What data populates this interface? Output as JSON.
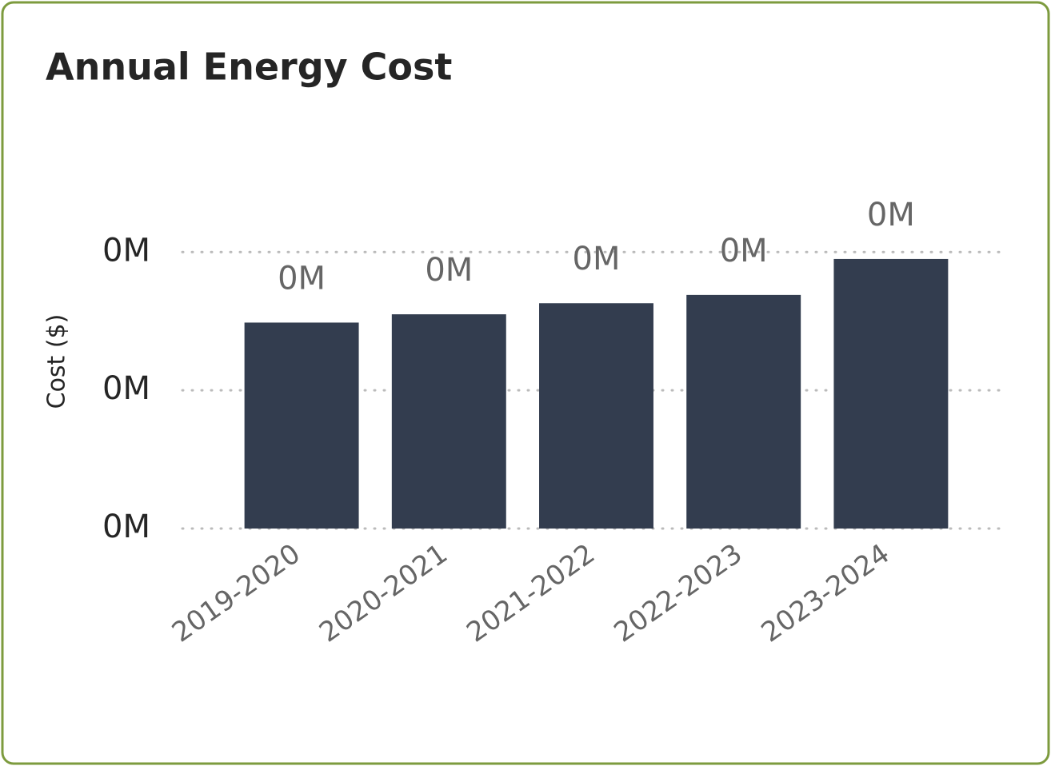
{
  "chart_data": {
    "type": "bar",
    "title": "Annual Energy Cost",
    "y_label": "Cost ($)",
    "categories": [
      "2019-2020",
      "2020-2021",
      "2021-2022",
      "2022-2023",
      "2023-2024"
    ],
    "values": [
      298000,
      310000,
      326000,
      338000,
      390000
    ],
    "value_labels": [
      "0M",
      "0M",
      "0M",
      "0M",
      "0M"
    ],
    "color": "#333d4f",
    "ylim": [
      0,
      420000
    ],
    "yticks": [
      {
        "value": 0,
        "label": "0M"
      },
      {
        "value": 200000,
        "label": "0M"
      },
      {
        "value": 400000,
        "label": "0M"
      }
    ],
    "grid": true
  }
}
